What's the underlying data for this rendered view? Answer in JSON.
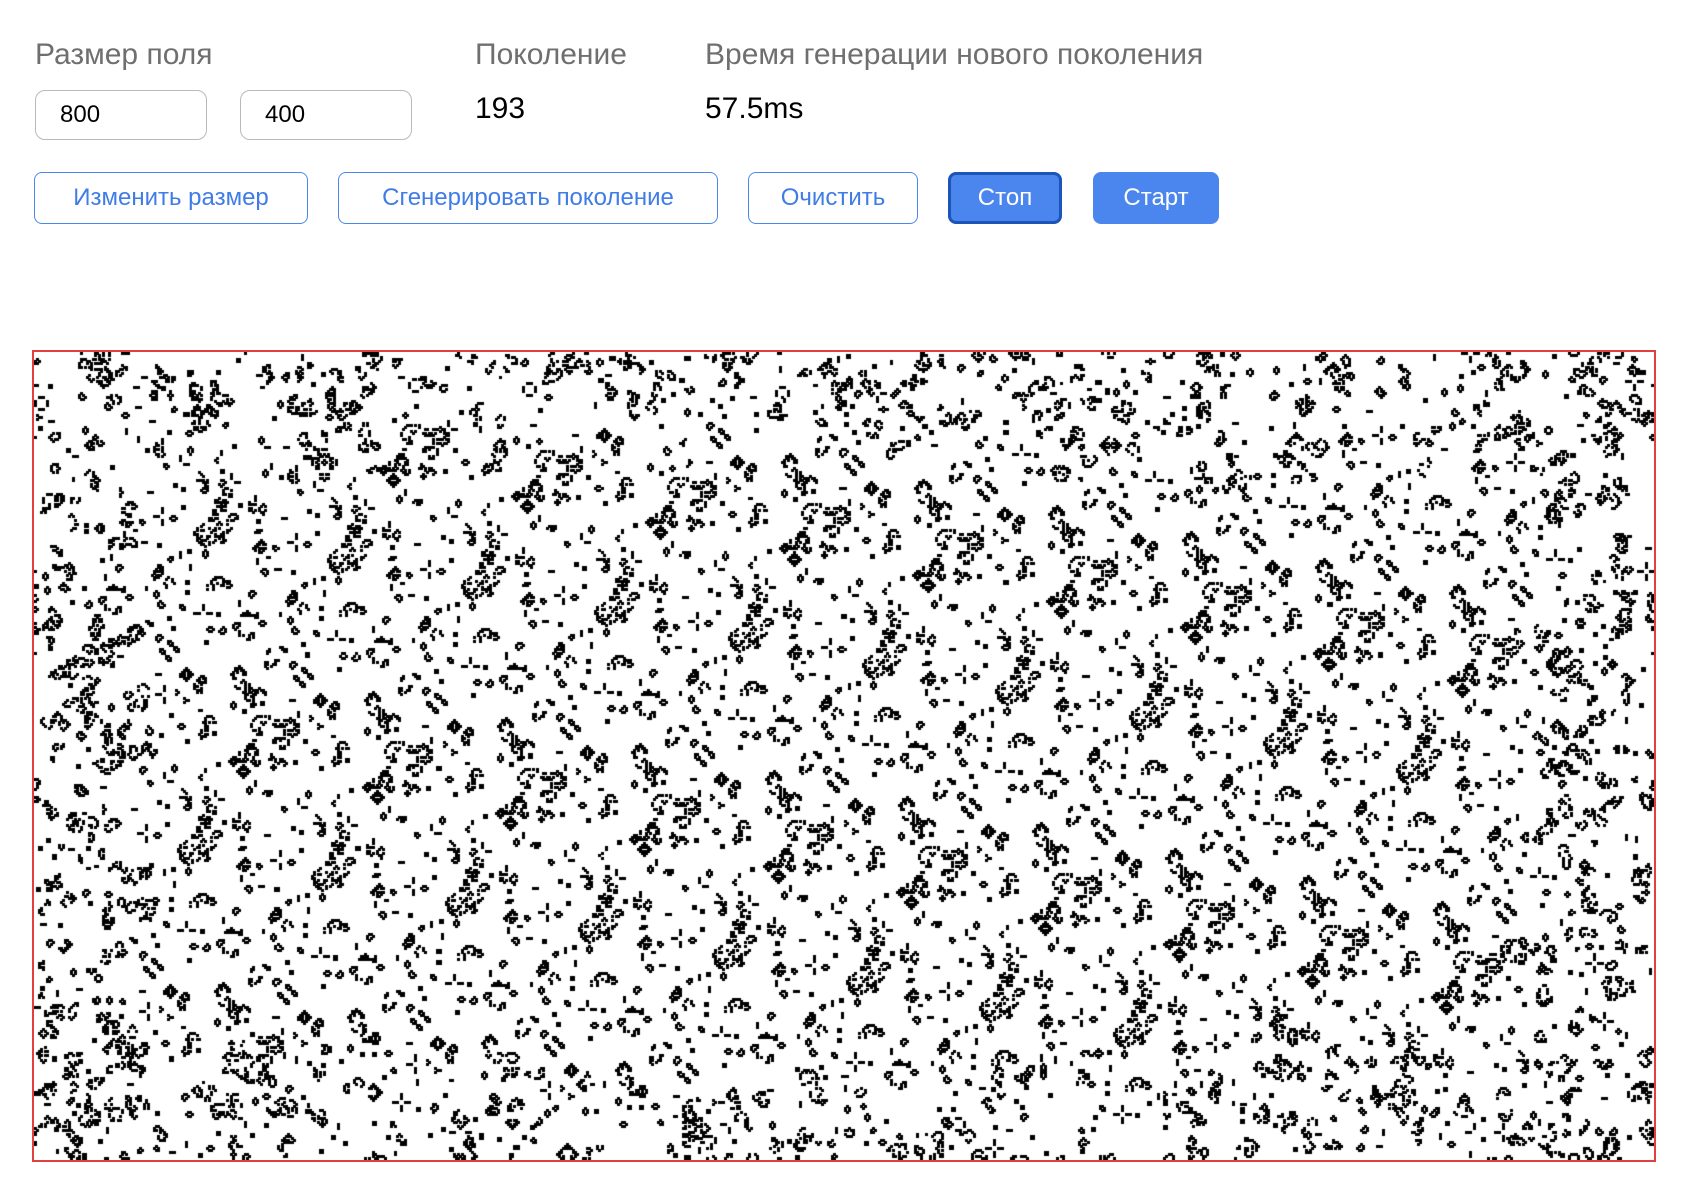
{
  "field_size": {
    "label": "Размер поля",
    "width_value": "800",
    "height_value": "400"
  },
  "generation": {
    "label": "Поколение",
    "value": "193"
  },
  "generation_time": {
    "label": "Время генерации нового поколения",
    "value": "57.5ms"
  },
  "buttons": {
    "resize": "Изменить размер",
    "generate": "Сгенерировать поколение",
    "clear": "Очистить",
    "stop": "Стоп",
    "start": "Старт"
  },
  "colors": {
    "accent": "#4a86ed",
    "field_border": "#e0413e",
    "live_cell": "#000000",
    "dead_cell": "#ffffff"
  }
}
